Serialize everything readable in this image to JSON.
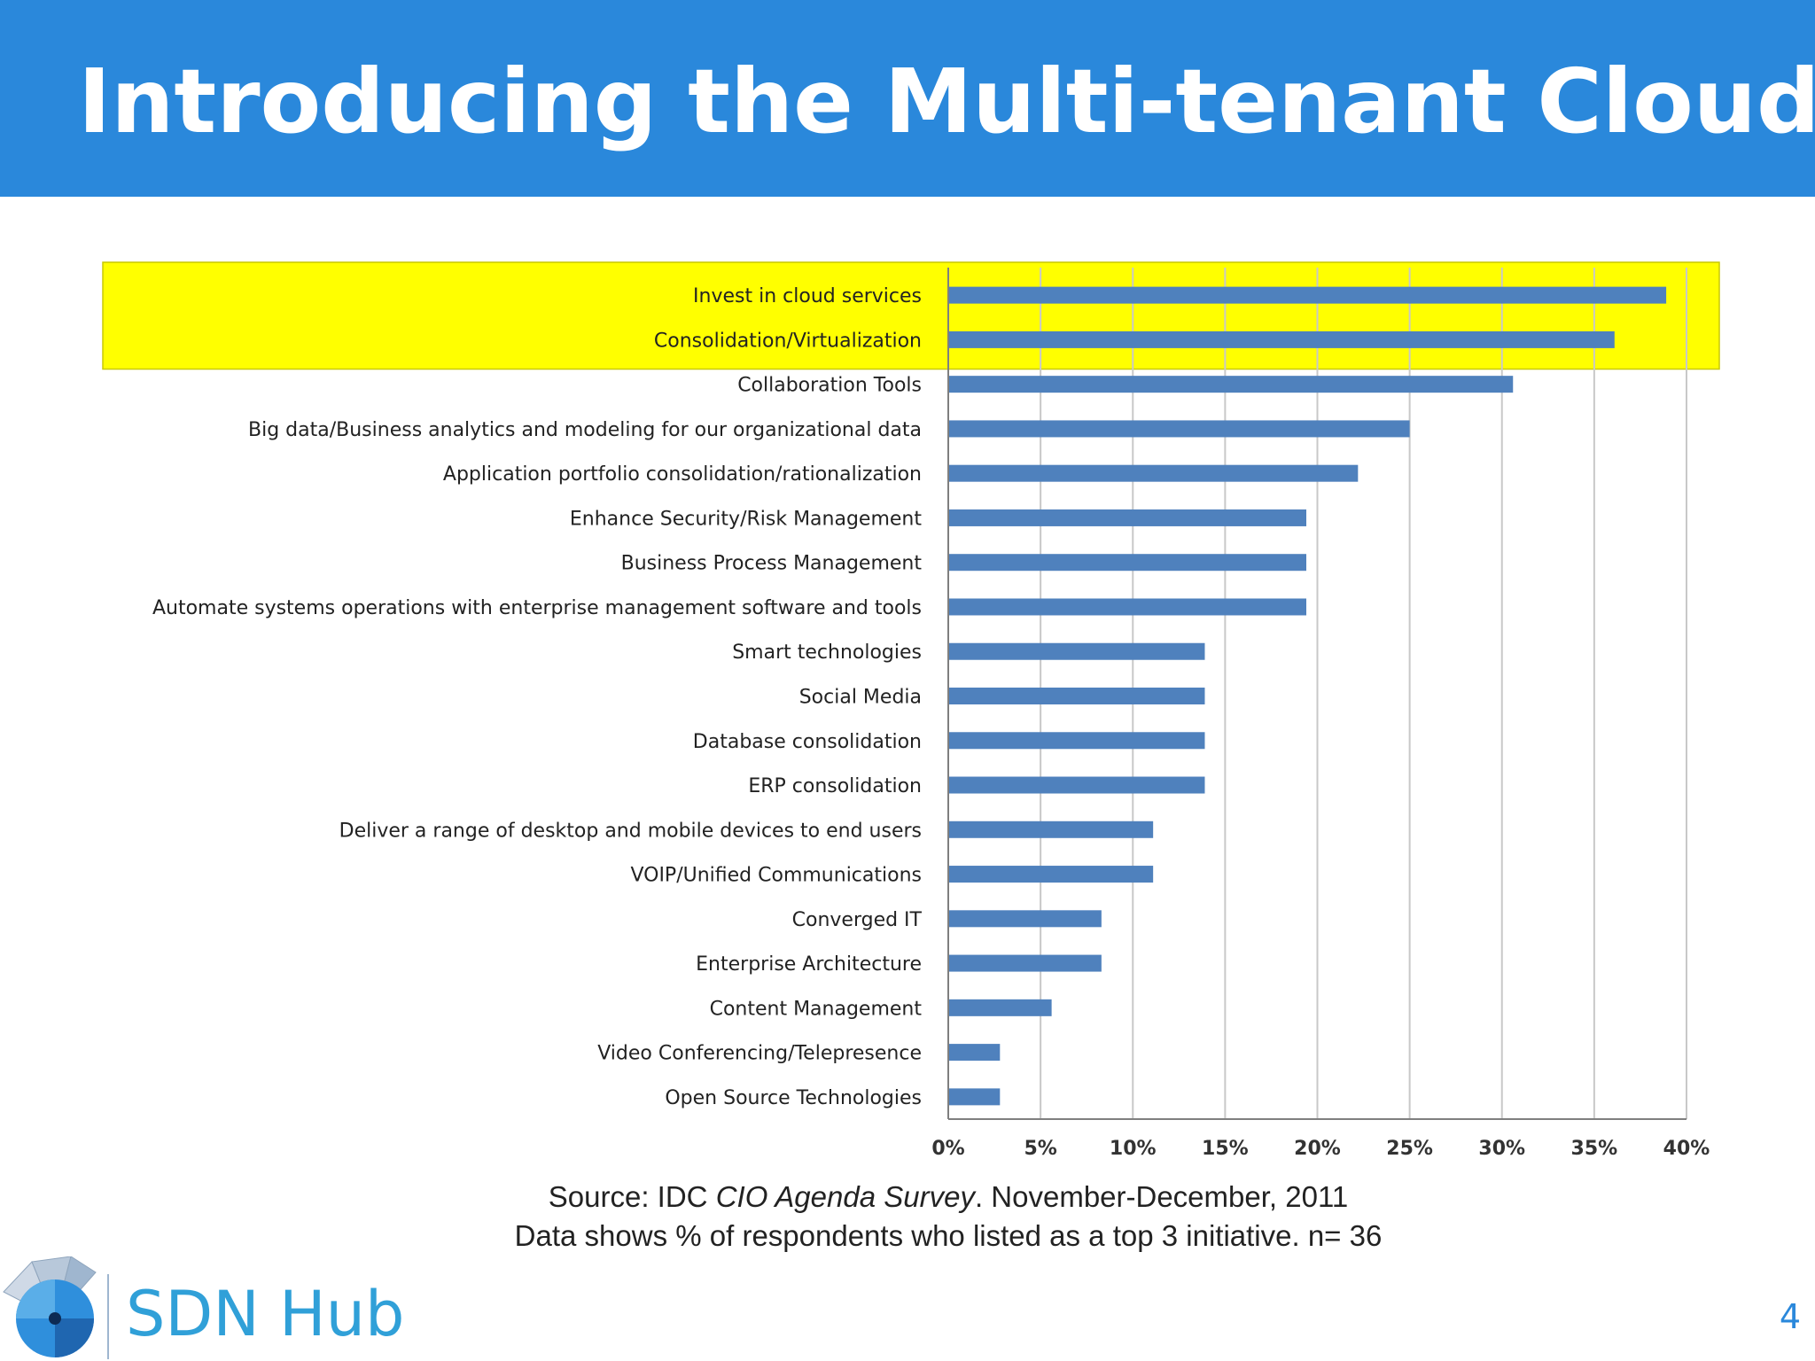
{
  "slide": {
    "title": "Introducing the Multi-tenant Cloud",
    "source_line_1_prefix": "Source: IDC ",
    "source_line_1_italic": "CIO Agenda Survey",
    "source_line_1_suffix": ". November-December, 2011",
    "source_line_2": "Data shows % of respondents who listed as a top 3 initiative. n= 36",
    "logo_text": "SDN Hub",
    "page_number": "4"
  },
  "colors": {
    "header": "#2a88db",
    "bar": "#4f81bd",
    "highlight": "#ffff00",
    "logo": "#30a0d8"
  },
  "chart_data": {
    "type": "bar",
    "orientation": "horizontal",
    "unit": "%",
    "categories": [
      "Invest in cloud services",
      "Consolidation/Virtualization",
      "Collaboration Tools",
      "Big data/Business analytics and modeling for our organizational data",
      "Application portfolio consolidation/rationalization",
      "Enhance Security/Risk Management",
      "Business Process Management",
      "Automate systems operations with enterprise management software and tools",
      "Smart technologies",
      "Social Media",
      "Database consolidation",
      "ERP consolidation",
      "Deliver a range of desktop and mobile devices to end users",
      "VOIP/Unified Communications",
      "Converged IT",
      "Enterprise Architecture",
      "Content Management",
      "Video Conferencing/Telepresence",
      "Open Source Technologies"
    ],
    "values": [
      38.9,
      36.1,
      30.6,
      25.0,
      22.2,
      19.4,
      19.4,
      19.4,
      13.9,
      13.9,
      13.9,
      13.9,
      11.1,
      11.1,
      8.3,
      8.3,
      5.6,
      2.8,
      2.8
    ],
    "highlighted_categories": [
      "Invest in cloud services",
      "Consolidation/Virtualization"
    ],
    "xlim": [
      0,
      40
    ],
    "xticks": [
      0,
      5,
      10,
      15,
      20,
      25,
      30,
      35,
      40
    ],
    "xtick_labels": [
      "0%",
      "5%",
      "10%",
      "15%",
      "20%",
      "25%",
      "30%",
      "35%",
      "40%"
    ],
    "grid": true,
    "title": "",
    "xlabel": "",
    "ylabel": ""
  }
}
